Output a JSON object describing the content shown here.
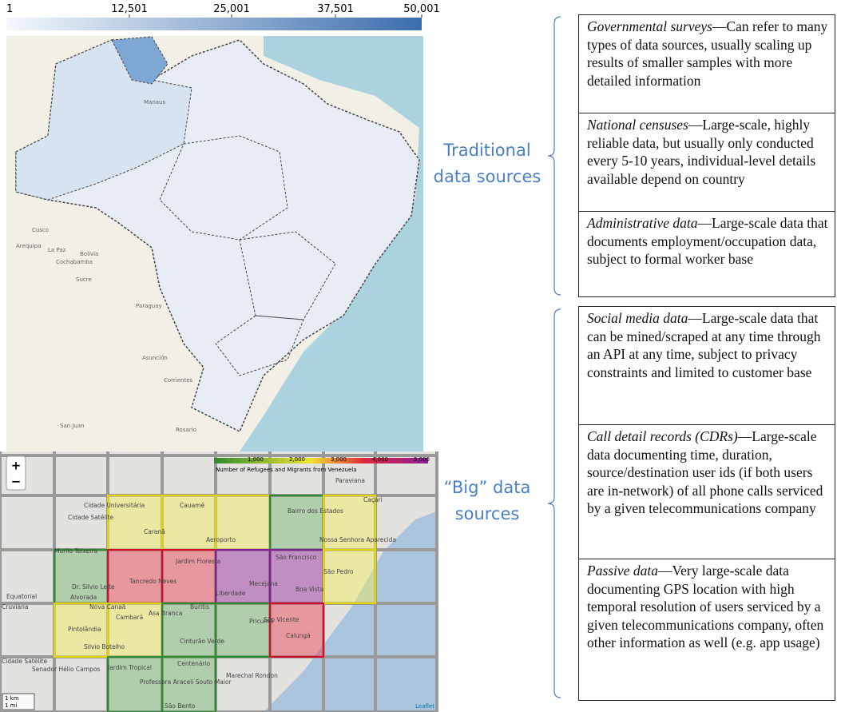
{
  "choropleth_map": {
    "scale_labels": [
      "1",
      "12,501",
      "25,001",
      "37,501",
      "50,001"
    ],
    "place_labels": [
      "Manaus",
      "Bolivia",
      "La Paz",
      "Cochabamba",
      "Sucre",
      "Arequipa",
      "Cusco",
      "Paraguay",
      "Asunción",
      "Corrientes",
      "San Juan",
      "Rosario"
    ]
  },
  "grid_map": {
    "zoom_in": "+",
    "zoom_out": "−",
    "legend_labels": [
      "1,000",
      "2,000",
      "3,000",
      "4,000",
      "5,000"
    ],
    "legend_title": "Number of Refugees and Migrants from Venezuela",
    "scale_labels": [
      "1 km",
      "1 mi"
    ],
    "attribution": "Leaflet",
    "place_labels": [
      "Cidade Universitária",
      "Cauamé",
      "Cidade Satélite",
      "Caranã",
      "Aeroporto",
      "Bairro dos Estados",
      "Nossa Senhora Aparecida",
      "Paraviana",
      "Caçari",
      "Murilo Teixeira",
      "Jardim Floresta",
      "São Francisco",
      "São Pedro",
      "Tancredo Neves",
      "Mecejana",
      "Liberdade",
      "Boa Vista",
      "Dr. Silvio Leite",
      "Alvorada",
      "Equatorial",
      "Cruviana",
      "Nova Canaã",
      "Cambará",
      "Buritis",
      "Asa Branca",
      "Pricumã",
      "São Vicente",
      "Calungá",
      "Pintolândia",
      "Silvio Botelho",
      "Cinturão Verde",
      "Senador Hélio Campos",
      "Jardim Tropical",
      "Centenário",
      "Professora Araceli Souto Maior",
      "Marechal Rondon",
      "São Bento",
      "Cidade Satélite"
    ]
  },
  "groups": [
    {
      "label": "Traditional data sources",
      "rows": [
        {
          "term": "Governmental surveys",
          "description": "—Can refer to many types of data sources, usually scaling up results of smaller samples with more detailed information"
        },
        {
          "term": "National censuses",
          "description": "—Large-scale, highly reliable data, but usually only conducted every 5-10 years, individual-level details available depend on country"
        },
        {
          "term": "Administrative data",
          "description": "—Large-scale data that documents employment/occupation data, subject to formal worker base"
        }
      ]
    },
    {
      "label": "“Big” data sources",
      "rows": [
        {
          "term": "Social media data",
          "description": "—Large-scale data that can be mined/scraped at any time through an API at any time, subject to privacy constraints and limited to customer base"
        },
        {
          "term": "Call detail records (CDRs)",
          "description": "—Large-scale data documenting time, duration, source/destination user ids (if both users are in-network) of all phone calls serviced by a given telecommunications company"
        },
        {
          "term": "Passive data",
          "description": "—Very large-scale data documenting GPS location with high temporal resolution of users serviced by a given telecommunications company, often other information as well (e.g. app usage)"
        }
      ]
    }
  ]
}
